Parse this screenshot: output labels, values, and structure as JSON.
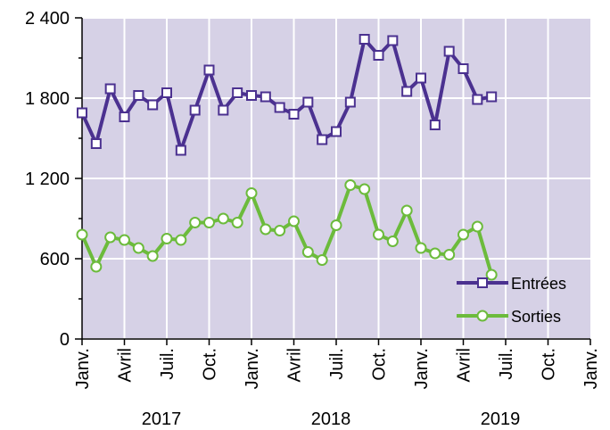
{
  "chart_data": {
    "type": "line",
    "categories": [
      "Janv.",
      null,
      null,
      "Avril",
      null,
      null,
      "Juil.",
      null,
      null,
      "Oct.",
      null,
      null,
      "Janv.",
      null,
      null,
      "Avril",
      null,
      null,
      "Juil.",
      null,
      null,
      "Oct.",
      null,
      null,
      "Janv.",
      null,
      null,
      "Avril",
      null,
      null,
      "Juil.",
      null,
      null,
      "Oct.",
      null,
      null,
      "Janv."
    ],
    "years": [
      "2017",
      "2018",
      "2019"
    ],
    "series": [
      {
        "name": "Entrées",
        "color": "#4b3190",
        "marker": "square",
        "values": [
          1690,
          1460,
          1870,
          1660,
          1820,
          1750,
          1840,
          1410,
          1710,
          2010,
          1710,
          1840,
          1820,
          1810,
          1730,
          1680,
          1770,
          1490,
          1550,
          1770,
          2240,
          2120,
          2230,
          1850,
          1950,
          1600,
          2150,
          2020,
          1790,
          1810,
          null,
          null,
          null,
          null,
          null,
          null,
          null
        ]
      },
      {
        "name": "Sorties",
        "color": "#6cbb3c",
        "marker": "circle",
        "values": [
          780,
          540,
          760,
          740,
          680,
          620,
          750,
          740,
          870,
          870,
          900,
          870,
          1090,
          820,
          810,
          880,
          650,
          590,
          850,
          1150,
          1120,
          780,
          730,
          960,
          680,
          640,
          630,
          780,
          840,
          480,
          null,
          null,
          null,
          null,
          null,
          null,
          null
        ]
      }
    ],
    "ylim": [
      0,
      2400
    ],
    "yticks": [
      0,
      600,
      {
        "value": 1200,
        "label": "1 200"
      },
      {
        "value": 1800,
        "label": "1 800"
      },
      {
        "value": 2400,
        "label": "2 400"
      }
    ],
    "yminor_ticks": [
      300,
      900,
      1500,
      2100
    ],
    "grid": true,
    "background": "#d6d1e6",
    "legend": "lower right"
  }
}
